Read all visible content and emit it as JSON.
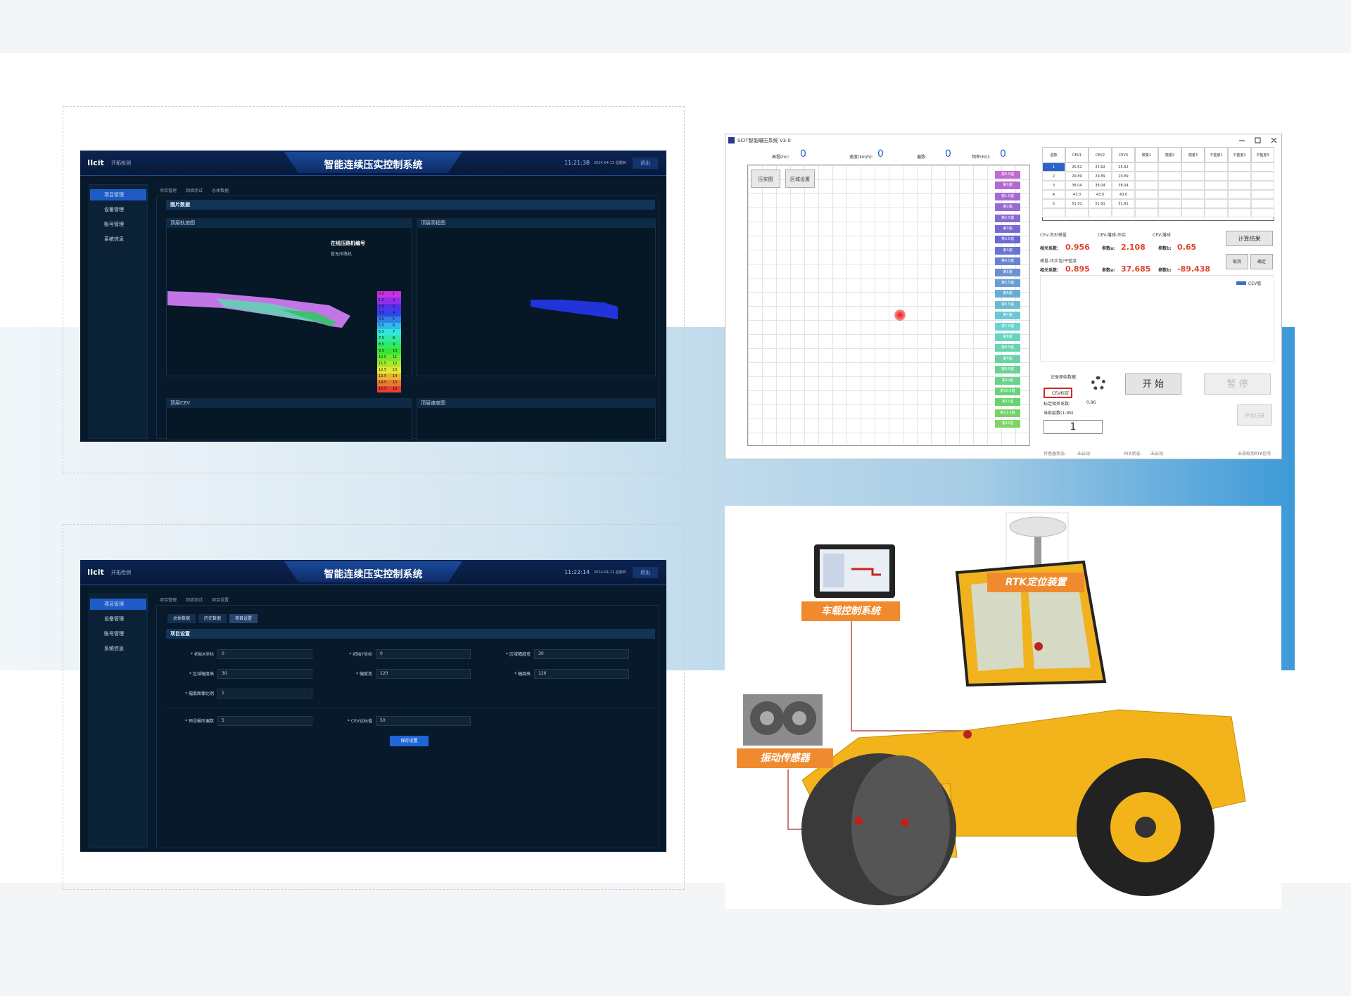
{
  "screen1": {
    "logo": "IIcit",
    "brand": "开拓检测",
    "title": "智能连续压实控制系统",
    "time": "11:21:38",
    "date": "2024-04-11 星期四",
    "logout": "退出",
    "menu": [
      "项目管理",
      "设备管理",
      "账号管理",
      "系统信息"
    ],
    "breadcrumb": [
      "项目管理",
      "回填测试",
      "总体数据"
    ],
    "section": "图片数据",
    "panels": [
      "顶层轨迹图",
      "顶层高程图",
      "顶层CEV",
      "顶层速度图"
    ],
    "label": "在线压路机编号",
    "sublabel": "暂无压路机",
    "legend": [
      [
        "0.5",
        "1"
      ],
      [
        "1.5",
        "2"
      ],
      [
        "2.5",
        "3"
      ],
      [
        "3.5",
        "4"
      ],
      [
        "4.5",
        "5"
      ],
      [
        "5.5",
        "6"
      ],
      [
        "6.5",
        "7"
      ],
      [
        "7.5",
        "8"
      ],
      [
        "8.5",
        "9"
      ],
      [
        "9.5",
        "10"
      ],
      [
        "10.5",
        "11"
      ],
      [
        "11.5",
        "12"
      ],
      [
        "12.5",
        "13"
      ],
      [
        "13.5",
        "14"
      ],
      [
        "14.5",
        "15"
      ],
      [
        "15.5",
        "16"
      ]
    ]
  },
  "screen2": {
    "logo": "IIcit",
    "brand": "开拓检测",
    "title": "智能连续压实控制系统",
    "time": "11:22:14",
    "date": "2024-04-11 星期四",
    "logout": "退出",
    "menu": [
      "项目管理",
      "设备管理",
      "账号管理",
      "系统信息"
    ],
    "breadcrumb": [
      "项目管理",
      "回填测试",
      "项目设置"
    ],
    "tabs": [
      "总体数据",
      "历史数据",
      "项目设置"
    ],
    "section": "项目设置",
    "fields": [
      {
        "label": "* 初始X坐标",
        "value": "0"
      },
      {
        "label": "* 初始Y坐标",
        "value": "0"
      },
      {
        "label": "* 区域幅度宽",
        "value": "30"
      },
      {
        "label": "* 区域幅度高",
        "value": "30"
      },
      {
        "label": "* 幅度宽",
        "value": "120"
      },
      {
        "label": "* 幅度高",
        "value": "120"
      },
      {
        "label": "* 幅度图像比例",
        "value": "1"
      }
    ],
    "fields2": [
      {
        "label": "* 预设碾压遍数",
        "value": "5"
      },
      {
        "label": "* CEV达标值",
        "value": "50"
      }
    ],
    "save": "保存设置"
  },
  "software": {
    "title": "SCIT智能碾压系统 V3.0",
    "stats": [
      {
        "label": "高程(m):",
        "value": "0"
      },
      {
        "label": "速度(km/h):",
        "value": "0"
      },
      {
        "label": "遍数:",
        "value": "0"
      },
      {
        "label": "频率(Hz):",
        "value": "0"
      }
    ],
    "buttons": [
      "压实图",
      "区域设置"
    ],
    "passes": [
      "第0.5遍",
      "第1遍",
      "第1.5遍",
      "第2遍",
      "第2.5遍",
      "第3遍",
      "第3.5遍",
      "第4遍",
      "第4.5遍",
      "第5遍",
      "第5.5遍",
      "第6遍",
      "第6.5遍",
      "第7遍",
      "第7.5遍",
      "第8遍",
      "第8.5遍",
      "第9遍",
      "第9.5遍",
      "第10遍",
      "第10.5遍",
      "第11遍",
      "第11.5遍",
      "第12遍"
    ],
    "table": {
      "header": [
        "遍数",
        "CEV1",
        "CEV2",
        "CEV3",
        "模量1",
        "模量2",
        "模量3",
        "平整度1",
        "平整度2",
        "平整度3"
      ],
      "rows": [
        [
          "1",
          "25.62",
          "25.62",
          "25.62"
        ],
        [
          "2",
          "29.89",
          "29.89",
          "29.89"
        ],
        [
          "3",
          "38.04",
          "38.04",
          "38.04"
        ],
        [
          "4",
          "43.0",
          "43.0",
          "43.0"
        ],
        [
          "5",
          "51.91",
          "51.91",
          "51.91"
        ]
      ]
    },
    "group1": "CEV-变形模量",
    "radios": [
      "CEV-落球-压实",
      "CEV-落球"
    ],
    "row1": [
      "相关系数:",
      "0.956",
      "参数a:",
      "2.108",
      "参数b:",
      "0.65"
    ],
    "group2": "模量-压实值/平整度",
    "row2": [
      "相关系数:",
      "0.895",
      "参数a:",
      "37.685",
      "参数b:",
      "-89.438"
    ],
    "calc": "计算结果",
    "cancel": "取消",
    "ok": "确定",
    "legend": "CEV值",
    "checks": [
      "记录原始数据",
      "CEV标定"
    ],
    "calib": [
      "标定相关系数:",
      "0.96"
    ],
    "layers": "当前层数(1-99)",
    "layer": "1",
    "start": "开 始",
    "pause": "暂 停",
    "record": "开始记录",
    "status": [
      "传感器状态:",
      "未启动",
      "RTK状态:",
      "未启动",
      "未获取到RTK信号"
    ]
  },
  "equipment": {
    "labels": [
      "车载控制系统",
      "RTK定位装置",
      "振动传感器"
    ]
  }
}
